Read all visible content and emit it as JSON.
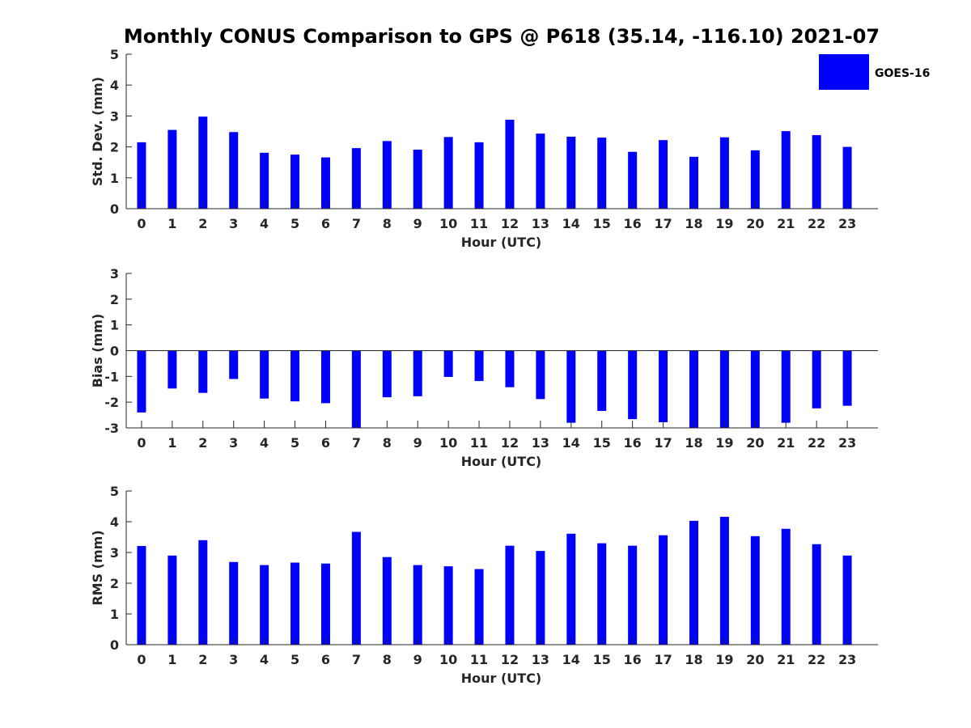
{
  "figure_title": "Monthly CONUS Comparison to GPS @ P618 (35.14, -116.10) 2021-07",
  "legend": {
    "label": "GOES-16",
    "color": "#0000ff"
  },
  "chart_data": [
    {
      "type": "bar",
      "title": "Monthly CONUS Comparison to GPS @ P618 (35.14, -116.10) 2021-07",
      "xlabel": "Hour (UTC)",
      "ylabel": "Std. Dev. (mm)",
      "ylim": [
        0,
        5
      ],
      "yticks": [
        0,
        1,
        2,
        3,
        4,
        5
      ],
      "categories": [
        "0",
        "1",
        "2",
        "3",
        "4",
        "5",
        "6",
        "7",
        "8",
        "9",
        "10",
        "11",
        "12",
        "13",
        "14",
        "15",
        "16",
        "17",
        "18",
        "19",
        "20",
        "21",
        "22",
        "23"
      ],
      "series": [
        {
          "name": "GOES-16",
          "color": "#0000ff",
          "values": [
            2.15,
            2.55,
            2.98,
            2.48,
            1.81,
            1.75,
            1.66,
            1.96,
            2.19,
            1.91,
            2.32,
            2.15,
            2.88,
            2.43,
            2.33,
            2.3,
            1.84,
            2.22,
            1.68,
            2.31,
            1.89,
            2.51,
            2.38,
            2.0
          ]
        }
      ]
    },
    {
      "type": "bar",
      "xlabel": "Hour (UTC)",
      "ylabel": "Bias (mm)",
      "ylim": [
        -3,
        3
      ],
      "yticks": [
        -3,
        -2,
        -1,
        0,
        1,
        2,
        3
      ],
      "categories": [
        "0",
        "1",
        "2",
        "3",
        "4",
        "5",
        "6",
        "7",
        "8",
        "9",
        "10",
        "11",
        "12",
        "13",
        "14",
        "15",
        "16",
        "17",
        "18",
        "19",
        "20",
        "21",
        "22",
        "23"
      ],
      "series": [
        {
          "name": "GOES-16",
          "color": "#0000ff",
          "values": [
            -2.4,
            -1.47,
            -1.64,
            -1.1,
            -1.86,
            -1.97,
            -2.04,
            -3.0,
            -1.81,
            -1.77,
            -1.02,
            -1.18,
            -1.42,
            -1.88,
            -2.8,
            -2.34,
            -2.66,
            -2.78,
            -3.0,
            -3.0,
            -3.0,
            -2.8,
            -2.24,
            -2.14
          ]
        }
      ]
    },
    {
      "type": "bar",
      "xlabel": "Hour (UTC)",
      "ylabel": "RMS (mm)",
      "ylim": [
        0,
        5
      ],
      "yticks": [
        0,
        1,
        2,
        3,
        4,
        5
      ],
      "categories": [
        "0",
        "1",
        "2",
        "3",
        "4",
        "5",
        "6",
        "7",
        "8",
        "9",
        "10",
        "11",
        "12",
        "13",
        "14",
        "15",
        "16",
        "17",
        "18",
        "19",
        "20",
        "21",
        "22",
        "23"
      ],
      "series": [
        {
          "name": "GOES-16",
          "color": "#0000ff",
          "values": [
            3.21,
            2.9,
            3.4,
            2.69,
            2.59,
            2.67,
            2.64,
            3.67,
            2.85,
            2.59,
            2.55,
            2.46,
            3.22,
            3.05,
            3.61,
            3.3,
            3.22,
            3.56,
            4.03,
            4.16,
            3.53,
            3.77,
            3.27,
            2.9
          ]
        }
      ]
    }
  ]
}
